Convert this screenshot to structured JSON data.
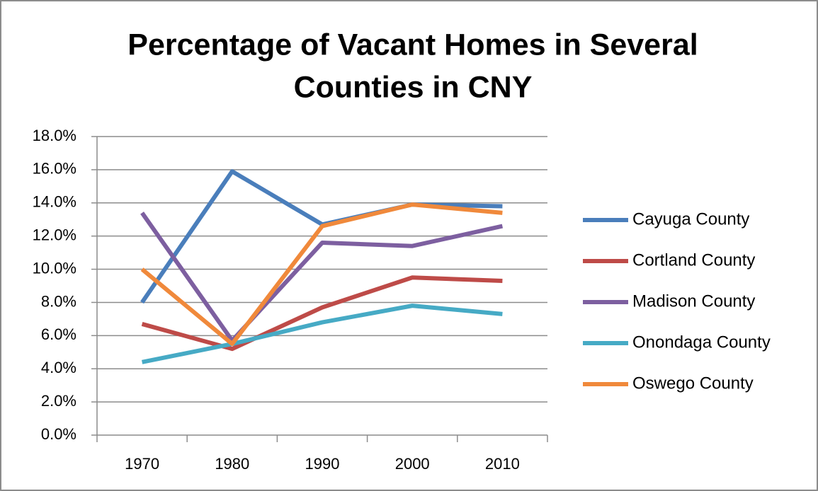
{
  "chart_data": {
    "type": "line",
    "title": [
      "Percentage of Vacant Homes in Several",
      "Counties in CNY"
    ],
    "categories": [
      "1970",
      "1980",
      "1990",
      "2000",
      "2010"
    ],
    "series": [
      {
        "name": "Cayuga County",
        "color": "#4a7ebb",
        "values": [
          8.0,
          15.9,
          12.7,
          13.9,
          13.8
        ]
      },
      {
        "name": "Cortland County",
        "color": "#be4b48",
        "values": [
          6.7,
          5.2,
          7.7,
          9.5,
          9.3
        ]
      },
      {
        "name": "Madison County",
        "color": "#7d5fa0",
        "values": [
          13.4,
          5.7,
          11.6,
          11.4,
          12.6
        ]
      },
      {
        "name": "Onondaga County",
        "color": "#46aac5",
        "values": [
          4.4,
          5.5,
          6.8,
          7.8,
          7.3
        ]
      },
      {
        "name": "Oswego County",
        "color": "#f0893b",
        "values": [
          10.0,
          5.5,
          12.6,
          13.9,
          13.4
        ]
      }
    ],
    "ylim": [
      0,
      18
    ],
    "yticks": [
      {
        "value": 0,
        "label": "0.0%"
      },
      {
        "value": 2,
        "label": "2.0%"
      },
      {
        "value": 4,
        "label": "4.0%"
      },
      {
        "value": 6,
        "label": "6.0%"
      },
      {
        "value": 8,
        "label": "8.0%"
      },
      {
        "value": 10,
        "label": "10.0%"
      },
      {
        "value": 12,
        "label": "12.0%"
      },
      {
        "value": 14,
        "label": "14.0%"
      },
      {
        "value": 16,
        "label": "16.0%"
      },
      {
        "value": 18,
        "label": "18.0%"
      }
    ],
    "grid": true,
    "legend": "right"
  }
}
